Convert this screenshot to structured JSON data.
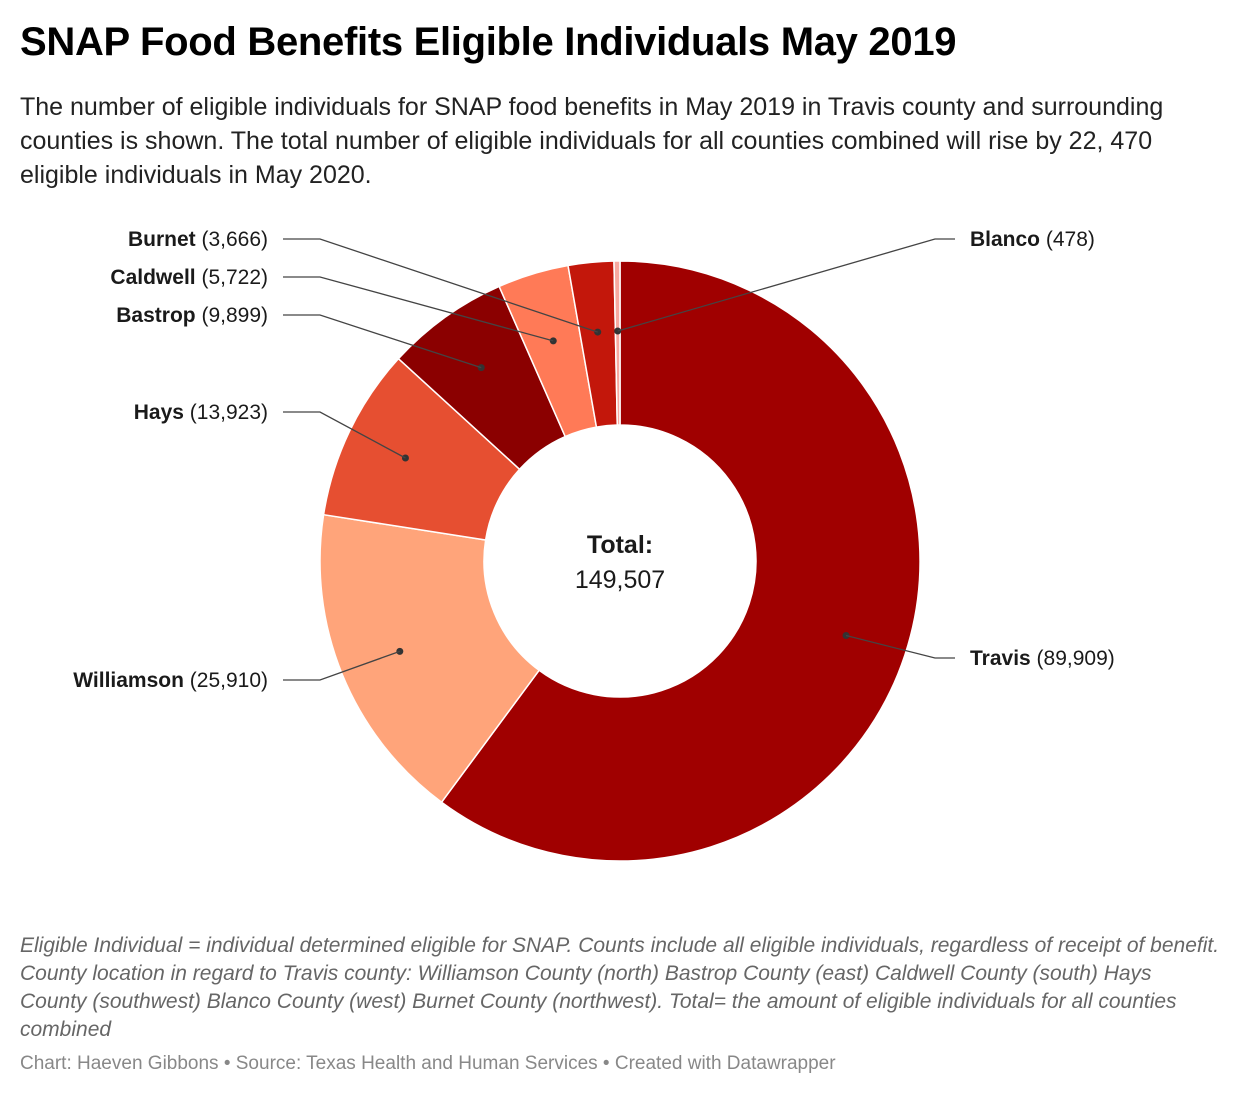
{
  "header": {
    "title": "SNAP Food Benefits Eligible Individuals May 2019",
    "subtitle": "The number of eligible individuals for SNAP food benefits in May 2019 in Travis county and surrounding counties is shown. The total number of eligible individuals for all counties combined will rise by 22, 470 eligible individuals in May 2020."
  },
  "chart_data": {
    "type": "pie",
    "variant": "donut",
    "categories": [
      "Travis",
      "Williamson",
      "Hays",
      "Bastrop",
      "Caldwell",
      "Burnet",
      "Blanco"
    ],
    "values": [
      89909,
      25910,
      13923,
      9899,
      5722,
      3666,
      478
    ],
    "value_labels": [
      "(89,909)",
      "(25,910)",
      "(13,923)",
      "(9,899)",
      "(5,722)",
      "(3,666)",
      "(478)"
    ],
    "colors": [
      "#a00000",
      "#ffa47a",
      "#e64f31",
      "#8b0000",
      "#ff7a57",
      "#c3170b",
      "#f7a9a0"
    ],
    "center_label": "Total:",
    "center_value": "149,507"
  },
  "notes": "Eligible Individual = individual determined eligible for SNAP. Counts include all eligible individuals, regardless of receipt of benefit. County location in regard to Travis county: Williamson County (north) Bastrop County (east) Caldwell County (south) Hays County (southwest) Blanco County (west) Burnet County (northwest). Total= the amount of eligible individuals for all counties combined",
  "footer": "Chart: Haeven Gibbons • Source: Texas Health and Human Services • Created with Datawrapper"
}
